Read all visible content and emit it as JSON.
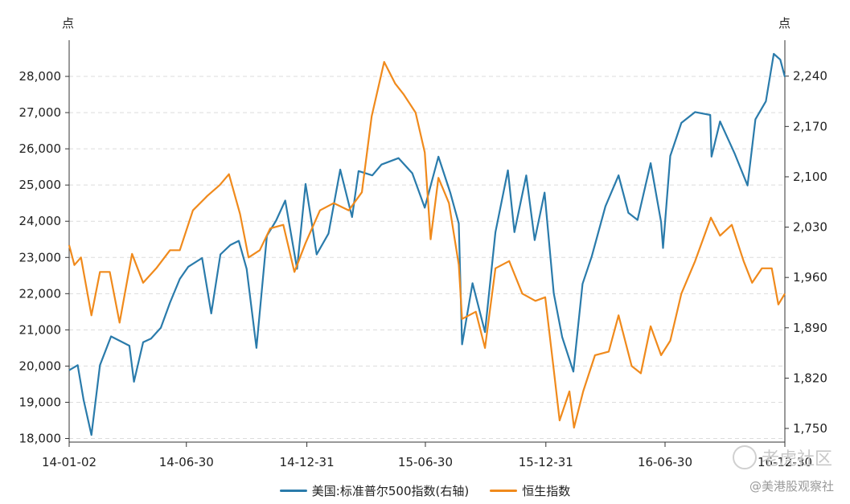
{
  "chart_data": {
    "type": "line",
    "title": "",
    "left_axis": {
      "unit": "点",
      "ylim": [
        17900,
        29000
      ],
      "ticks": [
        18000,
        19000,
        20000,
        21000,
        22000,
        23000,
        24000,
        25000,
        26000,
        27000,
        28000
      ],
      "tick_labels": [
        "18,000",
        "19,000",
        "20,000",
        "21,000",
        "22,000",
        "23,000",
        "24,000",
        "25,000",
        "26,000",
        "27,000",
        "28,000"
      ]
    },
    "right_axis": {
      "unit": "点",
      "ylim": [
        1731,
        2290
      ],
      "ticks": [
        1750,
        1820,
        1890,
        1960,
        2030,
        2100,
        2170,
        2240
      ],
      "tick_labels": [
        "1,750",
        "1,820",
        "1,890",
        "1,960",
        "2,030",
        "2,100",
        "2,170",
        "2,240"
      ]
    },
    "x_axis": {
      "xlim": [
        "2014-01-02",
        "2016-12-30"
      ],
      "ticks": [
        "2014-01-02",
        "2014-06-30",
        "2014-12-31",
        "2015-06-30",
        "2015-12-31",
        "2016-06-30",
        "2016-12-30"
      ],
      "tick_labels": [
        "14-01-02",
        "14-06-30",
        "14-12-31",
        "15-06-30",
        "15-12-31",
        "16-06-30",
        "16-12-30"
      ]
    },
    "grid": "horizontal-dashed",
    "legend_position": "bottom-center",
    "series": [
      {
        "name": "美国:标准普尔500指数(右轴)",
        "axis": "right",
        "color": "#2a7bab",
        "points": [
          [
            "2014-01-02",
            1831
          ],
          [
            "2014-01-15",
            1838
          ],
          [
            "2014-01-24",
            1790
          ],
          [
            "2014-02-05",
            1741
          ],
          [
            "2014-02-18",
            1838
          ],
          [
            "2014-03-07",
            1878
          ],
          [
            "2014-03-20",
            1872
          ],
          [
            "2014-04-04",
            1865
          ],
          [
            "2014-04-11",
            1815
          ],
          [
            "2014-04-25",
            1870
          ],
          [
            "2014-05-07",
            1875
          ],
          [
            "2014-05-22",
            1890
          ],
          [
            "2014-06-05",
            1925
          ],
          [
            "2014-06-20",
            1958
          ],
          [
            "2014-07-03",
            1975
          ],
          [
            "2014-07-24",
            1987
          ],
          [
            "2014-08-07",
            1910
          ],
          [
            "2014-08-21",
            1992
          ],
          [
            "2014-09-05",
            2005
          ],
          [
            "2014-09-18",
            2011
          ],
          [
            "2014-09-30",
            1972
          ],
          [
            "2014-10-15",
            1862
          ],
          [
            "2014-10-31",
            2018
          ],
          [
            "2014-11-14",
            2039
          ],
          [
            "2014-11-28",
            2067
          ],
          [
            "2014-12-16",
            1972
          ],
          [
            "2014-12-29",
            2090
          ],
          [
            "2015-01-15",
            1992
          ],
          [
            "2015-02-02",
            2021
          ],
          [
            "2015-02-20",
            2110
          ],
          [
            "2015-03-10",
            2044
          ],
          [
            "2015-03-20",
            2108
          ],
          [
            "2015-04-10",
            2102
          ],
          [
            "2015-04-24",
            2117
          ],
          [
            "2015-05-20",
            2126
          ],
          [
            "2015-06-10",
            2105
          ],
          [
            "2015-06-29",
            2057
          ],
          [
            "2015-07-20",
            2128
          ],
          [
            "2015-08-07",
            2078
          ],
          [
            "2015-08-20",
            2035
          ],
          [
            "2015-08-25",
            1867
          ],
          [
            "2015-09-10",
            1952
          ],
          [
            "2015-09-29",
            1884
          ],
          [
            "2015-10-15",
            2023
          ],
          [
            "2015-11-03",
            2109
          ],
          [
            "2015-11-13",
            2023
          ],
          [
            "2015-12-01",
            2102
          ],
          [
            "2015-12-14",
            2012
          ],
          [
            "2015-12-29",
            2078
          ],
          [
            "2016-01-12",
            1938
          ],
          [
            "2016-01-25",
            1877
          ],
          [
            "2016-02-11",
            1829
          ],
          [
            "2016-02-25",
            1951
          ],
          [
            "2016-03-10",
            1989
          ],
          [
            "2016-03-31",
            2059
          ],
          [
            "2016-04-20",
            2102
          ],
          [
            "2016-05-05",
            2050
          ],
          [
            "2016-05-19",
            2040
          ],
          [
            "2016-06-08",
            2119
          ],
          [
            "2016-06-24",
            2037
          ],
          [
            "2016-06-27",
            2001
          ],
          [
            "2016-07-08",
            2129
          ],
          [
            "2016-07-25",
            2175
          ],
          [
            "2016-08-15",
            2190
          ],
          [
            "2016-09-07",
            2186
          ],
          [
            "2016-09-09",
            2128
          ],
          [
            "2016-09-22",
            2177
          ],
          [
            "2016-10-14",
            2133
          ],
          [
            "2016-11-03",
            2088
          ],
          [
            "2016-11-15",
            2180
          ],
          [
            "2016-12-01",
            2205
          ],
          [
            "2016-12-13",
            2271
          ],
          [
            "2016-12-23",
            2263
          ],
          [
            "2016-12-30",
            2239
          ]
        ]
      },
      {
        "name": "恒生指数",
        "axis": "left",
        "color": "#f08a1c",
        "points": [
          [
            "2014-01-02",
            23340
          ],
          [
            "2014-01-10",
            22790
          ],
          [
            "2014-01-20",
            23000
          ],
          [
            "2014-02-05",
            21400
          ],
          [
            "2014-02-18",
            22600
          ],
          [
            "2014-03-05",
            22600
          ],
          [
            "2014-03-20",
            21200
          ],
          [
            "2014-04-08",
            23100
          ],
          [
            "2014-04-25",
            22300
          ],
          [
            "2014-05-15",
            22700
          ],
          [
            "2014-06-05",
            23200
          ],
          [
            "2014-06-20",
            23200
          ],
          [
            "2014-07-10",
            24300
          ],
          [
            "2014-08-01",
            24700
          ],
          [
            "2014-08-20",
            25000
          ],
          [
            "2014-09-03",
            25300
          ],
          [
            "2014-09-20",
            24200
          ],
          [
            "2014-10-03",
            23000
          ],
          [
            "2014-10-20",
            23200
          ],
          [
            "2014-11-05",
            23800
          ],
          [
            "2014-11-25",
            23900
          ],
          [
            "2014-12-12",
            22600
          ],
          [
            "2014-12-29",
            23400
          ],
          [
            "2015-01-20",
            24300
          ],
          [
            "2015-02-10",
            24500
          ],
          [
            "2015-03-05",
            24300
          ],
          [
            "2015-03-25",
            24800
          ],
          [
            "2015-04-09",
            26900
          ],
          [
            "2015-04-28",
            28400
          ],
          [
            "2015-05-15",
            27800
          ],
          [
            "2015-05-28",
            27500
          ],
          [
            "2015-06-15",
            27000
          ],
          [
            "2015-06-29",
            25900
          ],
          [
            "2015-07-08",
            23500
          ],
          [
            "2015-07-20",
            25200
          ],
          [
            "2015-08-05",
            24500
          ],
          [
            "2015-08-20",
            22800
          ],
          [
            "2015-08-25",
            21300
          ],
          [
            "2015-09-15",
            21500
          ],
          [
            "2015-09-29",
            20500
          ],
          [
            "2015-10-15",
            22700
          ],
          [
            "2015-11-05",
            22900
          ],
          [
            "2015-11-25",
            22000
          ],
          [
            "2015-12-15",
            21800
          ],
          [
            "2015-12-30",
            21900
          ],
          [
            "2016-01-12",
            19900
          ],
          [
            "2016-01-21",
            18500
          ],
          [
            "2016-02-05",
            19300
          ],
          [
            "2016-02-12",
            18300
          ],
          [
            "2016-02-26",
            19300
          ],
          [
            "2016-03-15",
            20300
          ],
          [
            "2016-04-05",
            20400
          ],
          [
            "2016-04-20",
            21400
          ],
          [
            "2016-05-10",
            20000
          ],
          [
            "2016-05-24",
            19800
          ],
          [
            "2016-06-08",
            21100
          ],
          [
            "2016-06-24",
            20300
          ],
          [
            "2016-07-08",
            20700
          ],
          [
            "2016-07-25",
            22000
          ],
          [
            "2016-08-15",
            22900
          ],
          [
            "2016-09-08",
            24100
          ],
          [
            "2016-09-22",
            23600
          ],
          [
            "2016-10-10",
            23900
          ],
          [
            "2016-10-28",
            22900
          ],
          [
            "2016-11-10",
            22300
          ],
          [
            "2016-11-25",
            22700
          ],
          [
            "2016-12-10",
            22700
          ],
          [
            "2016-12-20",
            21700
          ],
          [
            "2016-12-30",
            22000
          ]
        ]
      }
    ]
  },
  "watermark": {
    "main": "老虎社区",
    "sub": "@美港股观察社"
  }
}
